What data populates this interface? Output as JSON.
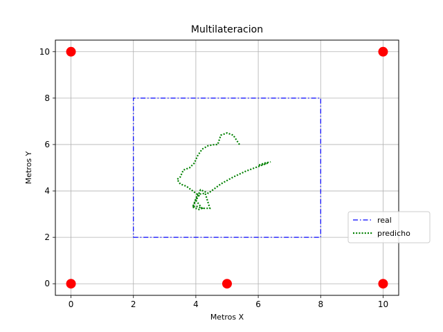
{
  "chart_data": {
    "type": "line",
    "title": "Multilateracion",
    "xlabel": "Metros X",
    "ylabel": "Metros Y",
    "xlim": [
      -0.5,
      10.5
    ],
    "ylim": [
      -0.5,
      10.5
    ],
    "xticks": [
      0,
      2,
      4,
      6,
      8,
      10
    ],
    "yticks": [
      0,
      2,
      4,
      6,
      8,
      10
    ],
    "grid": true,
    "legend_position": "right",
    "anchors": {
      "color": "#ff0000",
      "points": [
        [
          0,
          10
        ],
        [
          10,
          10
        ],
        [
          0,
          0
        ],
        [
          5,
          0
        ],
        [
          10,
          0
        ]
      ]
    },
    "series": [
      {
        "name": "real",
        "style": "dashdot",
        "color": "#0000ff",
        "x": [
          2,
          8,
          8,
          2,
          2
        ],
        "y": [
          2,
          2,
          8,
          8,
          2
        ]
      },
      {
        "name": "predicho",
        "style": "dotted",
        "color": "#008000",
        "x": [
          5.4,
          5.2,
          5.0,
          4.8,
          4.7,
          4.6,
          4.4,
          4.2,
          4.05,
          3.95,
          3.8,
          3.6,
          3.5,
          3.4,
          3.5,
          3.7,
          3.8,
          3.95,
          4.1,
          4.0,
          3.9,
          4.0,
          4.2,
          4.1,
          3.9,
          4.05,
          4.3,
          4.45,
          4.2,
          4.0,
          4.15,
          4.4,
          4.8,
          5.2,
          5.6,
          6.0,
          6.3,
          6.0,
          6.2,
          6.4
        ],
        "y": [
          6.0,
          6.4,
          6.5,
          6.4,
          6.0,
          6.0,
          5.95,
          5.8,
          5.5,
          5.2,
          5.0,
          4.9,
          4.6,
          4.5,
          4.3,
          4.2,
          4.1,
          3.95,
          3.8,
          3.6,
          3.3,
          3.35,
          3.25,
          3.2,
          3.3,
          3.85,
          3.9,
          3.25,
          3.25,
          3.6,
          4.05,
          3.9,
          4.3,
          4.6,
          4.85,
          5.05,
          5.2,
          5.1,
          5.2,
          5.25
        ]
      }
    ]
  }
}
